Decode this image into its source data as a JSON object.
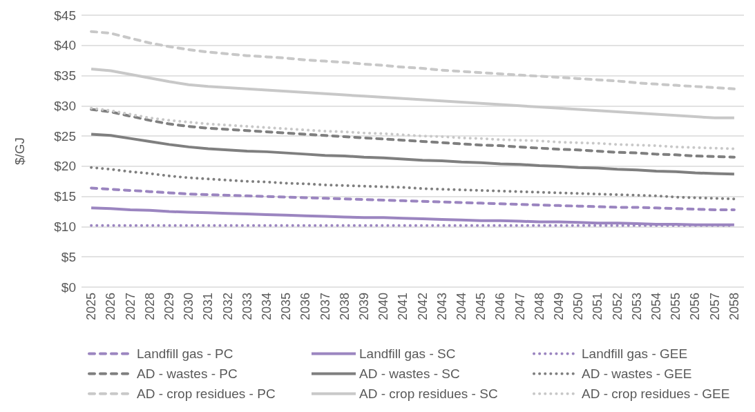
{
  "chart_data": {
    "type": "line",
    "ylabel": "$/GJ",
    "categories": [
      "2025",
      "2026",
      "2027",
      "2028",
      "2029",
      "2030",
      "2031",
      "2032",
      "2033",
      "2034",
      "2035",
      "2036",
      "2037",
      "2038",
      "2039",
      "2040",
      "2041",
      "2042",
      "2043",
      "2044",
      "2045",
      "2046",
      "2047",
      "2048",
      "2049",
      "2050",
      "2051",
      "2052",
      "2053",
      "2054",
      "2055",
      "2056",
      "2057",
      "2058"
    ],
    "ylim": [
      0,
      45
    ],
    "yticks": [
      {
        "value": 0,
        "label": "$0"
      },
      {
        "value": 5,
        "label": "$5"
      },
      {
        "value": 10,
        "label": "$10"
      },
      {
        "value": 15,
        "label": "$15"
      },
      {
        "value": 20,
        "label": "$20"
      },
      {
        "value": 25,
        "label": "$25"
      },
      {
        "value": 30,
        "label": "$30"
      },
      {
        "value": 35,
        "label": "$35"
      },
      {
        "value": 40,
        "label": "$40"
      },
      {
        "value": 45,
        "label": "$45"
      }
    ],
    "grid": "y",
    "legend": "bottom",
    "marker": "none",
    "series": [
      {
        "name": "Landfill gas - PC",
        "color": "#9b85c0",
        "line_style": "dashed",
        "values": [
          16.4,
          16.2,
          16.0,
          15.8,
          15.6,
          15.4,
          15.3,
          15.2,
          15.1,
          15.0,
          14.9,
          14.8,
          14.7,
          14.6,
          14.5,
          14.4,
          14.3,
          14.2,
          14.1,
          14.0,
          13.9,
          13.8,
          13.7,
          13.6,
          13.5,
          13.4,
          13.3,
          13.2,
          13.2,
          13.1,
          13.0,
          12.9,
          12.8,
          12.8
        ]
      },
      {
        "name": "Landfill gas - SC",
        "color": "#9b85c0",
        "line_style": "solid",
        "values": [
          13.1,
          13.0,
          12.8,
          12.7,
          12.5,
          12.4,
          12.3,
          12.2,
          12.1,
          12.0,
          11.9,
          11.8,
          11.7,
          11.6,
          11.5,
          11.5,
          11.4,
          11.3,
          11.2,
          11.1,
          11.0,
          11.0,
          10.9,
          10.8,
          10.8,
          10.7,
          10.6,
          10.6,
          10.5,
          10.4,
          10.4,
          10.3,
          10.3,
          10.3
        ]
      },
      {
        "name": "Landfill gas - GEE",
        "color": "#9b85c0",
        "line_style": "dotted",
        "values": [
          10.2,
          10.2,
          10.2,
          10.2,
          10.2,
          10.2,
          10.2,
          10.2,
          10.2,
          10.2,
          10.2,
          10.2,
          10.2,
          10.2,
          10.2,
          10.2,
          10.2,
          10.2,
          10.2,
          10.2,
          10.2,
          10.2,
          10.2,
          10.2,
          10.2,
          10.2,
          10.2,
          10.2,
          10.2,
          10.2,
          10.2,
          10.2,
          10.2,
          10.2
        ]
      },
      {
        "name": "AD - wastes - PC",
        "color": "#7f7f7f",
        "line_style": "dashed",
        "values": [
          29.4,
          29.0,
          28.3,
          27.6,
          27.0,
          26.6,
          26.3,
          26.1,
          25.9,
          25.7,
          25.5,
          25.3,
          25.1,
          24.9,
          24.7,
          24.5,
          24.3,
          24.1,
          23.9,
          23.7,
          23.5,
          23.4,
          23.2,
          23.0,
          22.8,
          22.7,
          22.5,
          22.3,
          22.2,
          22.0,
          21.9,
          21.7,
          21.6,
          21.5
        ]
      },
      {
        "name": "AD - wastes - SC",
        "color": "#7f7f7f",
        "line_style": "solid",
        "values": [
          25.3,
          25.1,
          24.6,
          24.1,
          23.6,
          23.2,
          22.9,
          22.7,
          22.5,
          22.4,
          22.2,
          22.0,
          21.8,
          21.7,
          21.5,
          21.4,
          21.2,
          21.0,
          20.9,
          20.7,
          20.6,
          20.4,
          20.3,
          20.1,
          20.0,
          19.8,
          19.7,
          19.5,
          19.4,
          19.2,
          19.1,
          18.9,
          18.8,
          18.7
        ]
      },
      {
        "name": "AD - wastes - GEE",
        "color": "#7f7f7f",
        "line_style": "dotted",
        "values": [
          19.8,
          19.5,
          19.1,
          18.8,
          18.4,
          18.1,
          17.9,
          17.7,
          17.5,
          17.4,
          17.2,
          17.1,
          16.9,
          16.8,
          16.7,
          16.6,
          16.5,
          16.3,
          16.2,
          16.1,
          16.0,
          15.9,
          15.8,
          15.7,
          15.6,
          15.5,
          15.4,
          15.3,
          15.2,
          15.1,
          14.9,
          14.8,
          14.7,
          14.6
        ]
      },
      {
        "name": "AD - crop residues - PC",
        "color": "#c8c8c8",
        "line_style": "dashed",
        "values": [
          42.3,
          42.0,
          41.2,
          40.4,
          39.8,
          39.3,
          38.9,
          38.6,
          38.3,
          38.1,
          37.9,
          37.6,
          37.4,
          37.2,
          36.9,
          36.7,
          36.4,
          36.2,
          35.9,
          35.7,
          35.5,
          35.3,
          35.1,
          34.9,
          34.7,
          34.5,
          34.3,
          34.1,
          33.8,
          33.6,
          33.4,
          33.2,
          33.0,
          32.8
        ]
      },
      {
        "name": "AD - crop residues - SC",
        "color": "#c8c8c8",
        "line_style": "solid",
        "values": [
          36.1,
          35.8,
          35.2,
          34.6,
          34.0,
          33.5,
          33.2,
          33.0,
          32.8,
          32.6,
          32.4,
          32.2,
          32.0,
          31.8,
          31.6,
          31.4,
          31.2,
          31.0,
          30.8,
          30.6,
          30.4,
          30.2,
          30.0,
          29.8,
          29.6,
          29.4,
          29.2,
          29.0,
          28.8,
          28.6,
          28.4,
          28.2,
          28.0,
          28.0
        ]
      },
      {
        "name": "AD - crop residues - GEE",
        "color": "#c8c8c8",
        "line_style": "dotted",
        "values": [
          29.6,
          29.2,
          28.6,
          28.0,
          27.6,
          27.3,
          27.0,
          26.8,
          26.6,
          26.4,
          26.2,
          26.0,
          25.8,
          25.7,
          25.5,
          25.4,
          25.2,
          25.0,
          24.9,
          24.7,
          24.6,
          24.4,
          24.3,
          24.2,
          24.0,
          23.9,
          23.8,
          23.6,
          23.5,
          23.4,
          23.2,
          23.1,
          23.0,
          22.9
        ]
      }
    ]
  }
}
